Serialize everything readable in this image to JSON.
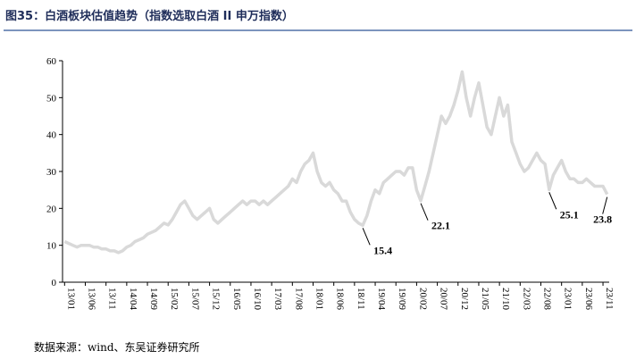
{
  "chart_data": {
    "type": "line",
    "title": "图35：白酒板块估值趋势（指数选取白酒 II 申万指数）",
    "source": "数据来源：wind、东吴证券研究所",
    "categories": [
      "13/01",
      null,
      null,
      null,
      null,
      "13/06",
      null,
      null,
      null,
      null,
      "13/11",
      null,
      null,
      null,
      null,
      "14/04",
      null,
      null,
      null,
      null,
      "14/09",
      null,
      null,
      null,
      null,
      "15/02",
      null,
      null,
      null,
      null,
      "15/07",
      null,
      null,
      null,
      null,
      "15/12",
      null,
      null,
      null,
      null,
      "16/05",
      null,
      null,
      null,
      null,
      "16/10",
      null,
      null,
      null,
      null,
      "17/03",
      null,
      null,
      null,
      null,
      "17/08",
      null,
      null,
      null,
      null,
      "18/01",
      null,
      null,
      null,
      null,
      "18/06",
      null,
      null,
      null,
      null,
      "18/11",
      null,
      null,
      null,
      null,
      "19/04",
      null,
      null,
      null,
      null,
      "19/09",
      null,
      null,
      null,
      null,
      "20/02",
      null,
      null,
      null,
      null,
      "20/07",
      null,
      null,
      null,
      null,
      "20/12",
      null,
      null,
      null,
      null,
      "21/05",
      null,
      null,
      null,
      null,
      "21/10",
      null,
      null,
      null,
      null,
      "22/03",
      null,
      null,
      null,
      null,
      "22/08",
      null,
      null,
      null,
      null,
      "23/01",
      null,
      null,
      null,
      null,
      "23/06",
      null,
      null,
      null,
      null,
      "23/11",
      null
    ],
    "values": [
      11,
      10.5,
      10,
      9.5,
      10,
      10,
      10,
      9.5,
      9.5,
      9,
      9,
      8.5,
      8.5,
      8,
      8.5,
      9.5,
      10,
      11,
      11.5,
      12,
      13,
      13.5,
      14,
      15,
      16,
      15.5,
      17,
      19,
      21,
      22,
      20,
      18,
      17,
      18,
      19,
      20,
      17,
      16,
      17,
      18,
      19,
      20,
      21,
      22,
      21,
      22,
      22,
      21,
      22,
      21,
      22,
      23,
      24,
      25,
      26,
      28,
      27,
      30,
      32,
      33,
      35,
      30,
      27,
      26,
      27,
      25,
      24,
      22,
      22,
      19,
      17,
      16,
      15.4,
      18,
      22,
      25,
      24,
      27,
      28,
      29,
      30,
      30,
      29,
      31,
      31,
      25,
      22.1,
      26,
      30,
      35,
      40,
      45,
      43,
      45,
      48,
      52,
      57,
      50,
      45,
      50,
      54,
      48,
      42,
      40,
      45,
      50,
      45,
      48,
      38,
      35,
      32,
      30,
      31,
      33,
      35,
      33,
      32,
      25.1,
      29,
      31,
      33,
      30,
      28,
      28,
      27,
      27,
      28,
      27,
      26,
      26,
      26,
      23.8
    ],
    "value_labels": [
      null,
      null,
      null,
      null,
      null,
      null,
      null,
      null,
      null,
      null,
      null,
      null,
      null,
      null,
      null,
      null,
      null,
      null,
      null,
      null,
      null,
      null,
      null,
      null,
      null,
      null,
      null,
      null,
      null,
      null,
      null,
      null,
      null,
      null,
      null,
      null,
      null,
      null,
      null,
      null,
      null,
      null,
      null,
      null,
      null,
      null,
      null,
      null,
      null,
      null,
      null,
      null,
      null,
      null,
      null,
      null,
      null,
      null,
      null,
      null,
      null,
      null,
      null,
      null,
      null,
      null,
      null,
      null,
      null,
      null,
      null,
      null,
      "15.4",
      null,
      null,
      null,
      null,
      null,
      null,
      null,
      null,
      null,
      null,
      null,
      null,
      null,
      "22.1",
      null,
      null,
      null,
      null,
      null,
      null,
      null,
      null,
      null,
      null,
      null,
      null,
      null,
      null,
      null,
      null,
      null,
      null,
      null,
      null,
      null,
      null,
      null,
      null,
      null,
      null,
      null,
      null,
      null,
      null,
      "25.1",
      null,
      null,
      null,
      null,
      null,
      null,
      null,
      null,
      null,
      null,
      null,
      null,
      null,
      "23.8"
    ],
    "color": "#d9d9d9",
    "ylim": [
      0,
      60
    ],
    "yticks": [
      0,
      10,
      20,
      30,
      40,
      50,
      60
    ]
  }
}
